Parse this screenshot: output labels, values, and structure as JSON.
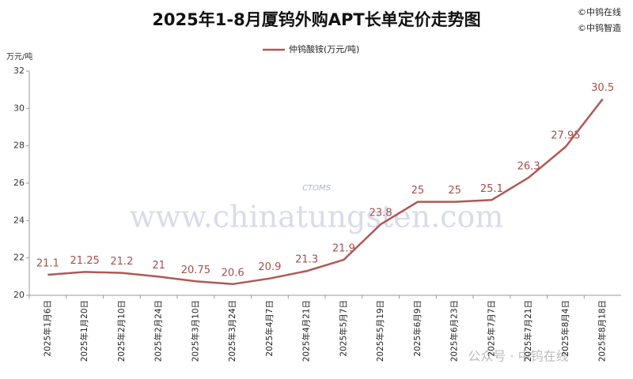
{
  "chart_data": {
    "type": "line",
    "title": "2025年1-8月厦钨外购APT长单定价走势图",
    "copyright": [
      "©中钨在线",
      "©中钨智造"
    ],
    "y_label": "万元/吨",
    "watermark": [
      "www.chinatungsten.com",
      "CTOMS",
      "公众号 · 中钨在线"
    ],
    "categories": [
      "2025年1月6日",
      "2025年1月20日",
      "2025年2月10日",
      "2025年2月24日",
      "2025年3月10日",
      "2025年3月24日",
      "2025年4月7日",
      "2025年4月21日",
      "2025年5月7日",
      "2025年5月19日",
      "2025年6月9日",
      "2025年6月23日",
      "2025年7月7日",
      "2025年7月21日",
      "2025年8月4日",
      "2025年8月18日"
    ],
    "series": [
      {
        "name": "仲钨酸铵(万元/吨)",
        "color": "#b05854",
        "values": [
          21.1,
          21.25,
          21.2,
          21,
          20.75,
          20.6,
          20.9,
          21.3,
          21.9,
          23.8,
          25,
          25,
          25.1,
          26.3,
          27.95,
          30.5
        ]
      }
    ],
    "ylim": [
      20,
      32
    ],
    "yticks": [
      20,
      22,
      24,
      26,
      28,
      30,
      32
    ],
    "grid": false,
    "legend": "top"
  }
}
